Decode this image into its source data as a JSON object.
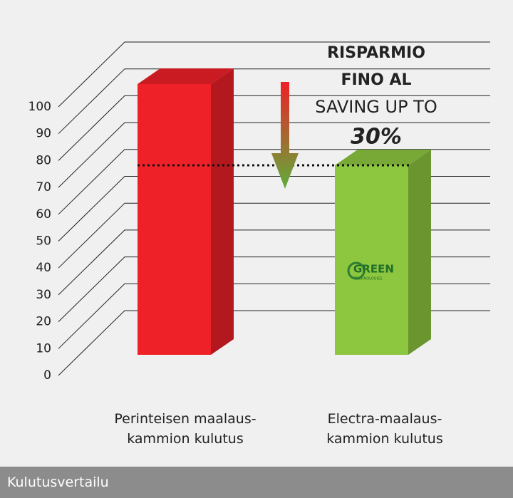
{
  "chart_data": {
    "type": "bar3d",
    "annotation": {
      "lines": [
        "RISPARMIO",
        "FINO AL",
        "SAVING UP TO",
        "30%"
      ]
    },
    "logo": {
      "name": "GREEN",
      "tagline": "TECHNOLOGIES"
    },
    "categories": [
      "Perinteisen maalaus-\nkammion kulutus",
      "Electra-maalaus-\nkammion kulutus"
    ],
    "values": [
      100,
      70
    ],
    "colors": [
      "#ee2028",
      "#8dc63f"
    ],
    "ylim": [
      0,
      100
    ],
    "yticks": [
      0,
      10,
      20,
      30,
      40,
      50,
      60,
      70,
      80,
      90,
      100
    ],
    "grid": true,
    "caption": "Kulutusvertailu"
  }
}
